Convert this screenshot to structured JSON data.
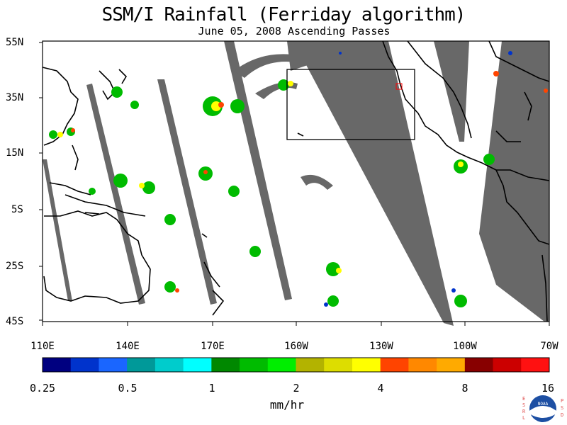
{
  "map": {
    "title": "SSM/I Rainfall (Ferriday algorithm)",
    "subtitle": "June 05, 2008  Ascending Passes",
    "lat_labels": [
      "55N",
      "35N",
      "15N",
      "5S",
      "25S",
      "45S"
    ],
    "lon_labels": [
      "110E",
      "140E",
      "170E",
      "160W",
      "130W",
      "100W",
      "70W"
    ],
    "colorbar_labels": [
      "0.25",
      "0.5",
      "1",
      "2",
      "4",
      "8",
      "16"
    ],
    "units": "mm/hr",
    "colorbar_colors": [
      "#000080",
      "#0033cc",
      "#1a66ff",
      "#009999",
      "#00cccc",
      "#00ffff",
      "#008800",
      "#00bb00",
      "#00ee00",
      "#b3b300",
      "#dddd00",
      "#ffff00",
      "#ff4400",
      "#ff8800",
      "#ffaa00",
      "#880000",
      "#cc0000",
      "#ff1111"
    ],
    "swath_color": "#686868",
    "logo_side_left": "ESRL",
    "logo_side_right": "PSD",
    "logo_text": "NOAA"
  }
}
